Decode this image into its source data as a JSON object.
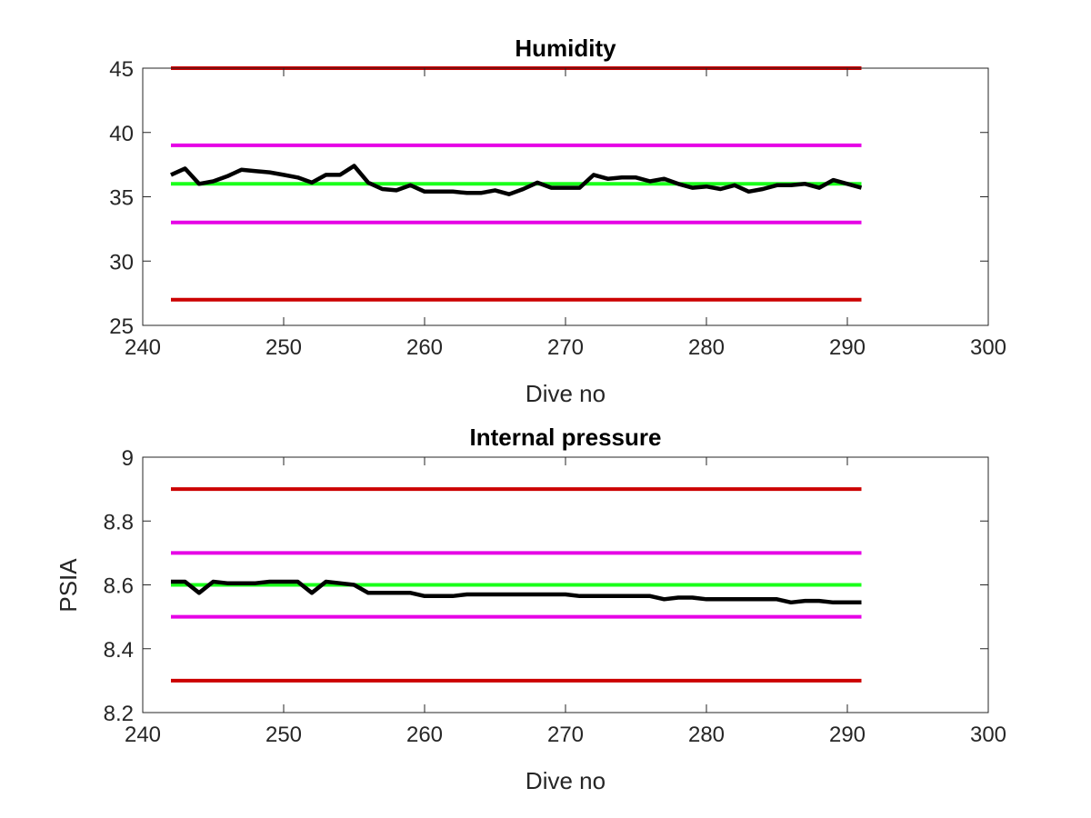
{
  "chart_data": [
    {
      "type": "line",
      "title": "Humidity",
      "xlabel": "Dive no",
      "ylabel": "",
      "xlim": [
        240,
        300
      ],
      "ylim": [
        25,
        45
      ],
      "xticks": [
        240,
        250,
        260,
        270,
        280,
        290,
        300
      ],
      "yticks": [
        25,
        30,
        35,
        40,
        45
      ],
      "grid": false,
      "series": [
        {
          "role": "reference",
          "color": "#cc0000",
          "x": [
            242,
            291
          ],
          "y": [
            45,
            45
          ]
        },
        {
          "role": "reference",
          "color": "#e600e6",
          "x": [
            242,
            291
          ],
          "y": [
            39,
            39
          ]
        },
        {
          "role": "reference",
          "color": "#1aff1a",
          "x": [
            242,
            291
          ],
          "y": [
            36,
            36
          ]
        },
        {
          "role": "reference",
          "color": "#e600e6",
          "x": [
            242,
            291
          ],
          "y": [
            33,
            33
          ]
        },
        {
          "role": "reference",
          "color": "#cc0000",
          "x": [
            242,
            291
          ],
          "y": [
            27,
            27
          ]
        },
        {
          "role": "data",
          "color": "#000000",
          "x": [
            242,
            243,
            244,
            245,
            246,
            247,
            248,
            249,
            250,
            251,
            252,
            253,
            254,
            255,
            256,
            257,
            258,
            259,
            260,
            261,
            262,
            263,
            264,
            265,
            266,
            267,
            268,
            269,
            270,
            271,
            272,
            273,
            274,
            275,
            276,
            277,
            278,
            279,
            280,
            281,
            282,
            283,
            284,
            285,
            286,
            287,
            288,
            289,
            290,
            291
          ],
          "y": [
            36.7,
            37.2,
            36.0,
            36.2,
            36.6,
            37.1,
            37.0,
            36.9,
            36.7,
            36.5,
            36.1,
            36.7,
            36.7,
            37.4,
            36.1,
            35.6,
            35.5,
            35.9,
            35.4,
            35.4,
            35.4,
            35.3,
            35.3,
            35.5,
            35.2,
            35.6,
            36.1,
            35.7,
            35.7,
            35.7,
            36.7,
            36.4,
            36.5,
            36.5,
            36.2,
            36.4,
            36.0,
            35.7,
            35.8,
            35.6,
            35.9,
            35.4,
            35.6,
            35.9,
            35.9,
            36.0,
            35.7,
            36.3,
            36.0,
            35.7
          ]
        }
      ]
    },
    {
      "type": "line",
      "title": "Internal pressure",
      "xlabel": "Dive no",
      "ylabel": "PSIA",
      "xlim": [
        240,
        300
      ],
      "ylim": [
        8.2,
        9
      ],
      "xticks": [
        240,
        250,
        260,
        270,
        280,
        290,
        300
      ],
      "yticks": [
        8.2,
        8.4,
        8.6,
        8.8,
        9
      ],
      "grid": false,
      "series": [
        {
          "role": "reference",
          "color": "#cc0000",
          "x": [
            242,
            291
          ],
          "y": [
            8.9,
            8.9
          ]
        },
        {
          "role": "reference",
          "color": "#e600e6",
          "x": [
            242,
            291
          ],
          "y": [
            8.7,
            8.7
          ]
        },
        {
          "role": "reference",
          "color": "#1aff1a",
          "x": [
            242,
            291
          ],
          "y": [
            8.6,
            8.6
          ]
        },
        {
          "role": "reference",
          "color": "#e600e6",
          "x": [
            242,
            291
          ],
          "y": [
            8.5,
            8.5
          ]
        },
        {
          "role": "reference",
          "color": "#cc0000",
          "x": [
            242,
            291
          ],
          "y": [
            8.3,
            8.3
          ]
        },
        {
          "role": "data",
          "color": "#000000",
          "x": [
            242,
            243,
            244,
            245,
            246,
            247,
            248,
            249,
            250,
            251,
            252,
            253,
            254,
            255,
            256,
            257,
            258,
            259,
            260,
            261,
            262,
            263,
            264,
            265,
            266,
            267,
            268,
            269,
            270,
            271,
            272,
            273,
            274,
            275,
            276,
            277,
            278,
            279,
            280,
            281,
            282,
            283,
            284,
            285,
            286,
            287,
            288,
            289,
            290,
            291
          ],
          "y": [
            8.61,
            8.61,
            8.575,
            8.61,
            8.605,
            8.605,
            8.605,
            8.61,
            8.61,
            8.61,
            8.575,
            8.61,
            8.605,
            8.6,
            8.575,
            8.575,
            8.575,
            8.575,
            8.565,
            8.565,
            8.565,
            8.57,
            8.57,
            8.57,
            8.57,
            8.57,
            8.57,
            8.57,
            8.57,
            8.565,
            8.565,
            8.565,
            8.565,
            8.565,
            8.565,
            8.555,
            8.56,
            8.56,
            8.555,
            8.555,
            8.555,
            8.555,
            8.555,
            8.555,
            8.545,
            8.55,
            8.55,
            8.545,
            8.545,
            8.545
          ]
        }
      ]
    }
  ]
}
